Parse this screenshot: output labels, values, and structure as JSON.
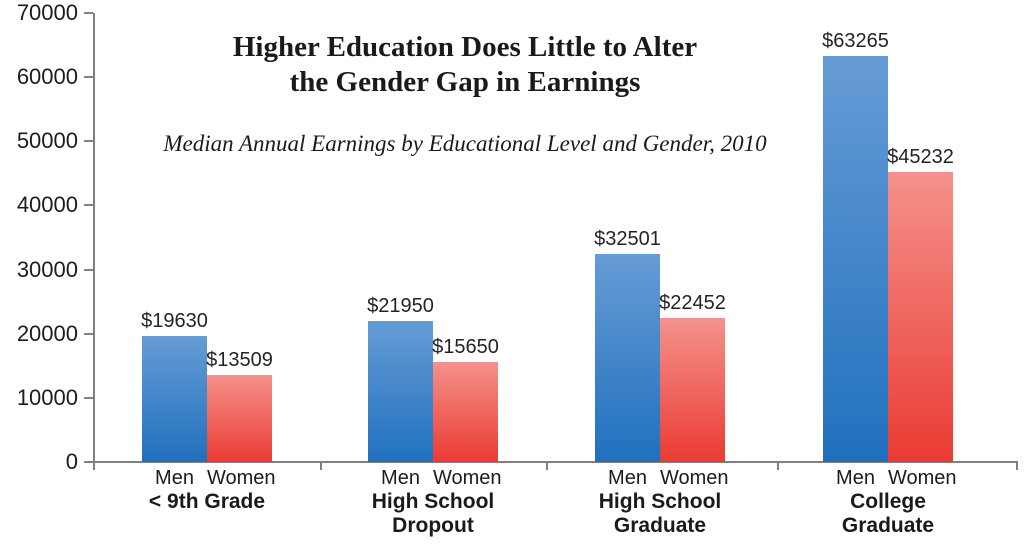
{
  "chart_data": {
    "type": "bar",
    "title": "Higher Education Does Little to Alter\nthe Gender Gap in Earnings",
    "subtitle": "Median Annual Earnings by Educational Level and Gender, 2010",
    "categories": [
      "< 9th Grade",
      "High School\nDropout",
      "High School\nGraduate",
      "College\nGraduate"
    ],
    "series": [
      {
        "name": "Men",
        "values": [
          19630,
          21950,
          32501,
          63265
        ],
        "color_top": "#669cd5",
        "color_bottom": "#2070be"
      },
      {
        "name": "Women",
        "values": [
          13509,
          15650,
          22452,
          45232
        ],
        "color_top": "#f4928b",
        "color_bottom": "#ea3b33"
      }
    ],
    "value_prefix": "$",
    "value_labels": [
      "$19630",
      "$13509",
      "$21950",
      "$15650",
      "$32501",
      "$22452",
      "$63265",
      "$45232"
    ],
    "ylim": [
      0,
      70000
    ],
    "ytick_step": 10000,
    "yticks": [
      "0",
      "10000",
      "20000",
      "30000",
      "40000",
      "50000",
      "60000",
      "70000"
    ],
    "xlabel": "",
    "ylabel": "",
    "grid": false,
    "legend_position": "none",
    "axis_color": "#808080",
    "text_color": "#1a1a1a",
    "background_color": "#ffffff"
  }
}
